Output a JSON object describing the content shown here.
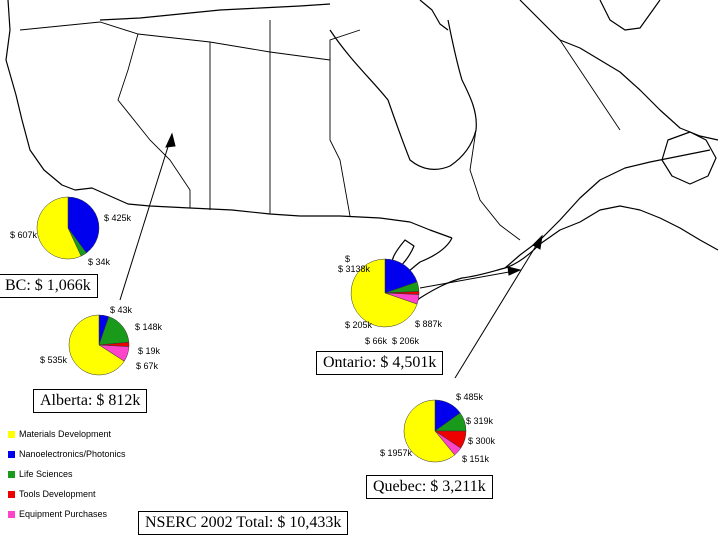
{
  "colors": {
    "materials": "#ffff00",
    "nano": "#0000ee",
    "life": "#1a9a1a",
    "tools": "#ee0000",
    "equipment": "#ff44cc"
  },
  "legend": [
    {
      "label": "Materials Development",
      "color_key": "materials"
    },
    {
      "label": "Nanoelectronics/Photonics",
      "color_key": "nano"
    },
    {
      "label": "Life Sciences",
      "color_key": "life"
    },
    {
      "label": "Tools Development",
      "color_key": "tools"
    },
    {
      "label": "Equipment Purchases",
      "color_key": "equipment"
    }
  ],
  "regions": {
    "bc": {
      "title": "BC: $ 1,066k",
      "slices": [
        {
          "key": "materials",
          "value": 607,
          "label": "$ 607k"
        },
        {
          "key": "nano",
          "value": 425,
          "label": "$ 425k"
        },
        {
          "key": "life",
          "value": 34,
          "label": "$ 34k"
        }
      ]
    },
    "alberta": {
      "title": "Alberta: $ 812k",
      "slices": [
        {
          "key": "materials",
          "value": 535,
          "label": "$ 535k"
        },
        {
          "key": "nano",
          "value": 43,
          "label": "$ 43k"
        },
        {
          "key": "life",
          "value": 148,
          "label": "$ 148k"
        },
        {
          "key": "tools",
          "value": 19,
          "label": "$ 19k"
        },
        {
          "key": "equipment",
          "value": 67,
          "label": "$ 67k"
        }
      ]
    },
    "ontario": {
      "title": "Ontario: $ 4,501k",
      "slices": [
        {
          "key": "materials",
          "value": 3138,
          "label": "$ 3138k"
        },
        {
          "key": "nano",
          "value": 887,
          "label": "$ 887k"
        },
        {
          "key": "life",
          "value": 206,
          "label": "$ 206k"
        },
        {
          "key": "tools",
          "value": 66,
          "label": "$ 66k"
        },
        {
          "key": "equipment",
          "value": 205,
          "label": "$ 205k"
        }
      ]
    },
    "quebec": {
      "title": "Quebec: $ 3,211k",
      "slices": [
        {
          "key": "materials",
          "value": 1957,
          "label": "$ 1957k"
        },
        {
          "key": "nano",
          "value": 485,
          "label": "$ 485k"
        },
        {
          "key": "life",
          "value": 319,
          "label": "$ 319k"
        },
        {
          "key": "tools",
          "value": 300,
          "label": "$ 300k"
        },
        {
          "key": "equipment",
          "value": 151,
          "label": "$ 151k"
        }
      ]
    }
  },
  "total": "NSERC 2002 Total: $ 10,433k"
}
